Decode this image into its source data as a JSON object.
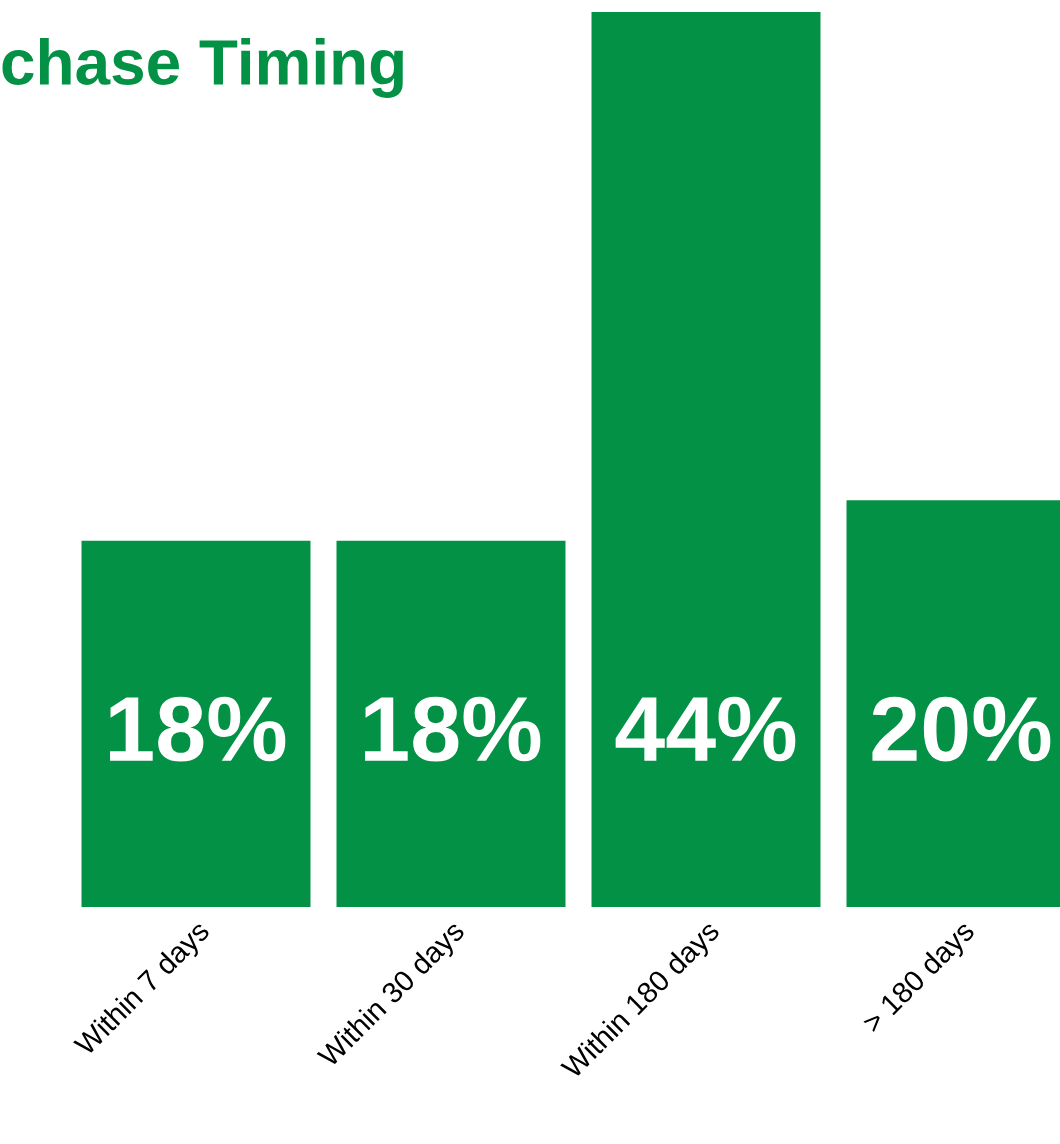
{
  "chart_data": {
    "type": "bar",
    "title": "chase Timing",
    "categories": [
      "Within 7 days",
      "Within 30 days",
      "Within 180 days",
      "> 180 days"
    ],
    "values": [
      18,
      18,
      44,
      20
    ],
    "value_labels": [
      "18%",
      "18%",
      "44%",
      "20%"
    ],
    "color": "#039245",
    "ylim": [
      0,
      44
    ],
    "grid": false,
    "legend": false,
    "tick_labels": "x"
  }
}
